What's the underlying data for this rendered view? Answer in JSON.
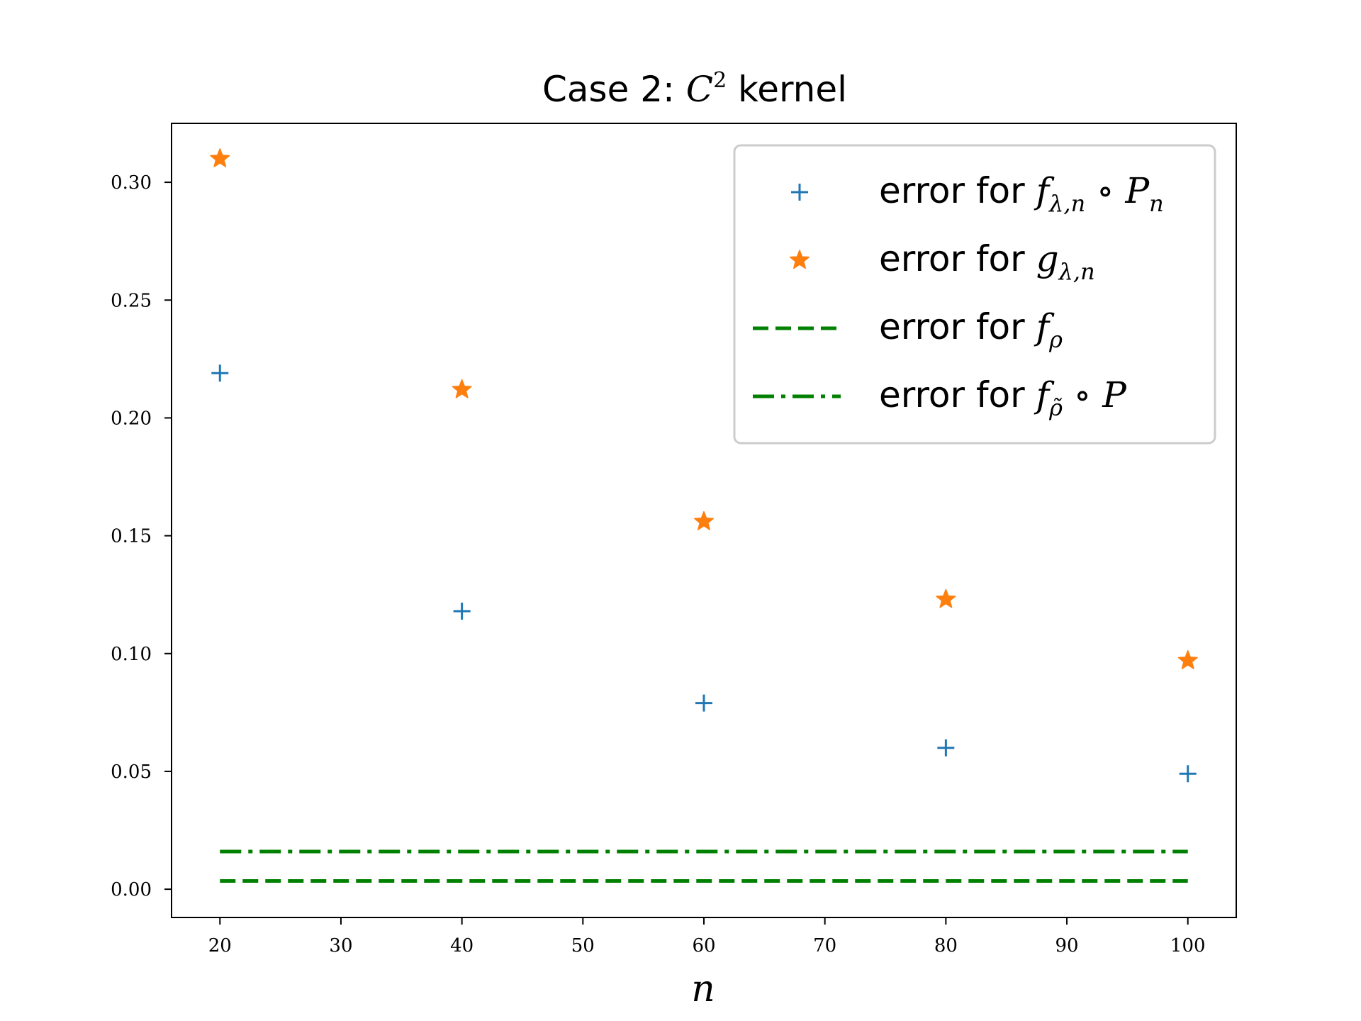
{
  "chart_data": {
    "type": "scatter",
    "title": {
      "prefix": "Case 2: ",
      "symbol": "C",
      "superscript": "2",
      "suffix": " kernel"
    },
    "xlabel": "n",
    "ylabel": "",
    "xlim": [
      16,
      104
    ],
    "ylim": [
      -0.012,
      0.325
    ],
    "xticks": [
      20,
      30,
      40,
      50,
      60,
      70,
      80,
      90,
      100
    ],
    "yticks": [
      0.0,
      0.05,
      0.1,
      0.15,
      0.2,
      0.25,
      0.3
    ],
    "xtick_labels": [
      "20",
      "30",
      "40",
      "50",
      "60",
      "70",
      "80",
      "90",
      "100"
    ],
    "ytick_labels": [
      "0.00",
      "0.05",
      "0.10",
      "0.15",
      "0.20",
      "0.25",
      "0.30"
    ],
    "grid": false,
    "legend_position": "top-right",
    "x": [
      20,
      40,
      60,
      80,
      100
    ],
    "series": [
      {
        "name": "error for f̂_{λ,n} ∘ P̂_n",
        "legend": {
          "prefix": "error for ",
          "f": "f",
          "fsub": "λ,n",
          "op": " ∘ ",
          "p": "P",
          "psub": "n"
        },
        "marker": "plus",
        "color": "#1f77b4",
        "values": [
          0.219,
          0.118,
          0.079,
          0.06,
          0.049
        ]
      },
      {
        "name": "error for g_{λ,n}",
        "legend": {
          "prefix": "error for ",
          "f": "g",
          "fsub": "λ,n"
        },
        "marker": "star",
        "color": "#ff7f0e",
        "values": [
          0.31,
          0.212,
          0.156,
          0.123,
          0.097
        ]
      },
      {
        "name": "error for f_ρ",
        "legend": {
          "prefix": "error for ",
          "f": "f",
          "fsub": "ρ"
        },
        "line_style": "dashed",
        "color": "#008000",
        "values": [
          0.0035,
          0.0035,
          0.0035,
          0.0035,
          0.0035
        ]
      },
      {
        "name": "error for f_ρ̃ ∘ P",
        "legend": {
          "prefix": "error for ",
          "f": "f",
          "fsub": "ρ̃",
          "op": " ∘ ",
          "p": "P"
        },
        "line_style": "dashdot",
        "color": "#008000",
        "values": [
          0.016,
          0.016,
          0.016,
          0.016,
          0.016
        ]
      }
    ]
  }
}
